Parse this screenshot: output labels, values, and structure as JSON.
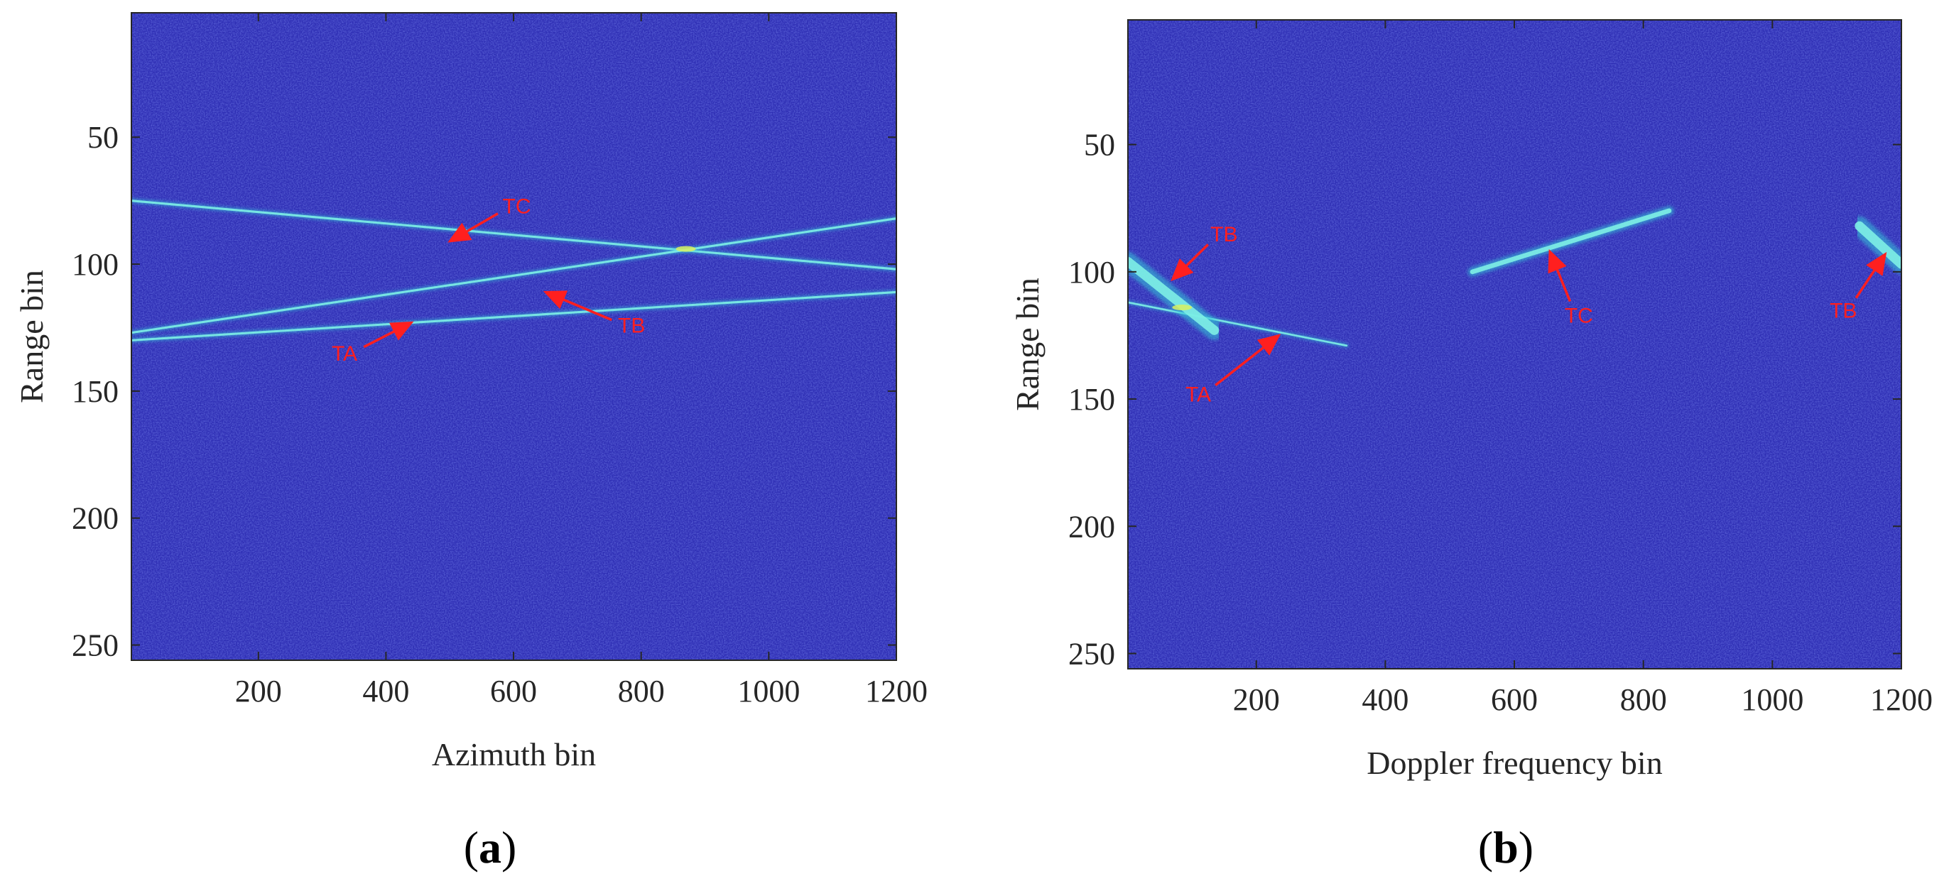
{
  "colors": {
    "background": "#2f2fb5",
    "noise_dark": "#241f99",
    "noise_light": "#3b48cf",
    "line": "#35c8d8",
    "line_core": "#7ff0e6",
    "hotspot": "#d8f060",
    "annotation": "#ff1f1f",
    "axis": "#262626"
  },
  "chart_data": [
    {
      "type": "heatmap",
      "panel_label": "(a)",
      "xlabel": "Azimuth bin",
      "ylabel": "Range bin",
      "xlim": [
        1,
        1200
      ],
      "ylim": [
        256,
        1
      ],
      "y_reversed": true,
      "xticks": [
        200,
        400,
        600,
        800,
        1000,
        1200
      ],
      "yticks": [
        50,
        100,
        150,
        200,
        250
      ],
      "colormap": "parula",
      "tracks": [
        {
          "name": "TC",
          "points": [
            [
              1,
              75
            ],
            [
              1200,
              102
            ]
          ]
        },
        {
          "name": "TB",
          "points": [
            [
              1,
              127
            ],
            [
              1200,
              82
            ]
          ]
        },
        {
          "name": "TA",
          "points": [
            [
              1,
              130
            ],
            [
              1200,
              111
            ]
          ]
        }
      ],
      "hotspots": [
        [
          870,
          94
        ]
      ],
      "annotations": [
        {
          "text": "TC",
          "text_at": [
            605,
            80
          ],
          "arrow_tip": [
            500,
            91
          ]
        },
        {
          "text": "TB",
          "text_at": [
            785,
            127
          ],
          "arrow_tip": [
            650,
            111
          ]
        },
        {
          "text": "TA",
          "text_at": [
            335,
            138
          ],
          "arrow_tip": [
            440,
            123
          ]
        }
      ]
    },
    {
      "type": "heatmap",
      "panel_label": "(b)",
      "xlabel": "Doppler frequency bin",
      "ylabel": "Range bin",
      "xlim": [
        1,
        1200
      ],
      "ylim": [
        256,
        1
      ],
      "y_reversed": true,
      "xticks": [
        200,
        400,
        600,
        800,
        1000,
        1200
      ],
      "yticks": [
        50,
        100,
        150,
        200,
        250
      ],
      "colormap": "parula",
      "tracks": [
        {
          "name": "TA",
          "points": [
            [
              1,
              112
            ],
            [
              340,
              129
            ]
          ],
          "width": 1.2
        },
        {
          "name": "TB",
          "points": [
            [
              1,
              96
            ],
            [
              135,
              123
            ]
          ],
          "width": 6
        },
        {
          "name": "TC",
          "points": [
            [
              535,
              100
            ],
            [
              840,
              76
            ]
          ],
          "width": 3
        },
        {
          "name": "TB",
          "points": [
            [
              1135,
              82
            ],
            [
              1200,
              97
            ]
          ],
          "width": 6
        }
      ],
      "hotspots": [
        [
          85,
          114
        ]
      ],
      "annotations": [
        {
          "text": "TB",
          "text_at": [
            150,
            88
          ],
          "arrow_tip": [
            70,
            103
          ]
        },
        {
          "text": "TA",
          "text_at": [
            110,
            151
          ],
          "arrow_tip": [
            235,
            125
          ]
        },
        {
          "text": "TC",
          "text_at": [
            700,
            120
          ],
          "arrow_tip": [
            655,
            92
          ]
        },
        {
          "text": "TB",
          "text_at": [
            1110,
            118
          ],
          "arrow_tip": [
            1175,
            93
          ]
        }
      ]
    }
  ]
}
